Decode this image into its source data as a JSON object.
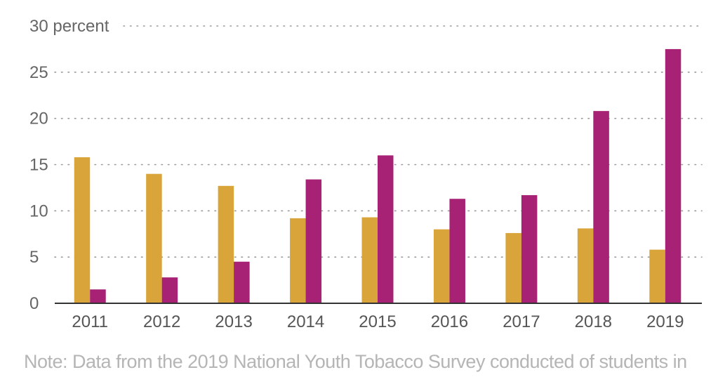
{
  "chart_data": {
    "type": "bar",
    "categories": [
      "2011",
      "2012",
      "2013",
      "2014",
      "2015",
      "2016",
      "2017",
      "2018",
      "2019"
    ],
    "series": [
      {
        "values": [
          15.8,
          14.0,
          12.7,
          9.2,
          9.3,
          8.0,
          7.6,
          8.1,
          5.8
        ]
      },
      {
        "values": [
          1.5,
          2.8,
          4.5,
          13.4,
          16.0,
          11.3,
          11.7,
          20.8,
          27.5
        ]
      }
    ],
    "colors": [
      "#d9a53b",
      "#a72174"
    ],
    "y_ticks": [
      "0",
      "5",
      "10",
      "15",
      "20",
      "25",
      "30 percent"
    ],
    "ylim": [
      0,
      30
    ],
    "grid": true
  },
  "note": "Note: Data from the 2019 National Youth Tobacco Survey conducted of students in"
}
